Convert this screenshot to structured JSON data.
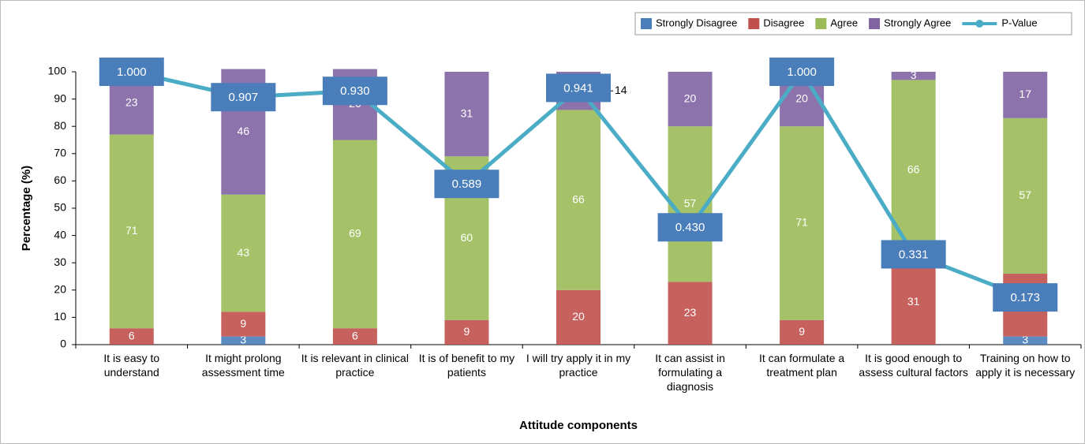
{
  "chart_data": {
    "type": "stacked-bar-line",
    "x_label": "Attitude components",
    "y_label": "Percentage (%)",
    "categories": [
      "It is easy to understand",
      "It might prolong assessment time",
      "It is relevant in clinical practice",
      "It is of benefit to my patients",
      "I will try apply it in my practice",
      "It can assist in formulating a diagnosis",
      "It can formulate a treatment plan",
      "It is good enough to assess cultural factors",
      "Training on how to apply it is necessary"
    ],
    "ylim": [
      0,
      100
    ],
    "yticks": [
      0,
      10,
      20,
      30,
      40,
      50,
      60,
      70,
      80,
      90,
      100
    ],
    "y2lim": [
      0,
      1
    ],
    "grid": false,
    "legend": "top right",
    "series": [
      {
        "name": "Strongly Disagree",
        "color": "#4a7ebb",
        "values": [
          0,
          3,
          0,
          0,
          0,
          0,
          0,
          0,
          3
        ],
        "value_labels": [
          null,
          "3",
          null,
          null,
          null,
          null,
          null,
          null,
          "3"
        ]
      },
      {
        "name": "Disagree",
        "color": "#c0504d",
        "values": [
          6,
          9,
          6,
          9,
          20,
          23,
          9,
          31,
          23
        ],
        "value_labels": [
          "6",
          "9",
          "6",
          "9",
          "20",
          "23",
          "9",
          "31",
          null
        ]
      },
      {
        "name": "Agree",
        "color": "#9bbb59",
        "values": [
          71,
          43,
          69,
          60,
          66,
          57,
          71,
          66,
          57
        ],
        "value_labels": [
          "71",
          "43",
          "69",
          "60",
          "66",
          "57",
          "71",
          "66",
          "57"
        ]
      },
      {
        "name": "Strongly Agree",
        "color": "#8064a2",
        "values": [
          23,
          46,
          26,
          31,
          14,
          20,
          20,
          3,
          17
        ],
        "value_labels": [
          "23",
          "46",
          "26",
          "31",
          "14",
          "20",
          "20",
          "3",
          "17"
        ]
      },
      {
        "name": "P-Value",
        "color": "#4bacc6",
        "axis": "y2",
        "box_color": "#4a7ebb",
        "values": [
          1,
          0.907,
          0.93,
          0.589,
          0.941,
          0.43,
          1,
          0.331,
          0.173
        ],
        "value_labels": [
          "1.000",
          "0.907",
          "0.930",
          "0.589",
          "0.941",
          "0.430",
          "1.000",
          "0.331",
          "0.173"
        ]
      }
    ]
  }
}
